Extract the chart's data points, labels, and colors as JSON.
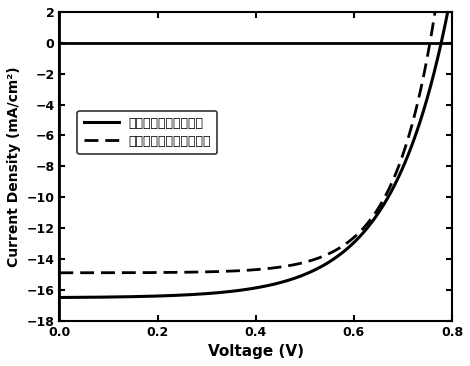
{
  "title": "",
  "xlabel": "Voltage (V)",
  "ylabel": "Current Density (mA/cm²)",
  "xlim": [
    0.0,
    0.8
  ],
  "ylim": [
    -18,
    2
  ],
  "xticks": [
    0.0,
    0.2,
    0.4,
    0.6,
    0.8
  ],
  "yticks": [
    -18,
    -16,
    -14,
    -12,
    -10,
    -8,
    -6,
    -4,
    -2,
    0,
    2
  ],
  "legend1": "涂覆稀土络合物的电池",
  "legend2": "未涂覆稀土络合物的电池",
  "solid_Jsc": -16.5,
  "solid_Voc": 0.778,
  "solid_n": 4.5,
  "dashed_Jsc": -14.9,
  "dashed_Voc": 0.755,
  "dashed_n": 3.2,
  "background_color": "#ffffff",
  "line_color": "#000000"
}
